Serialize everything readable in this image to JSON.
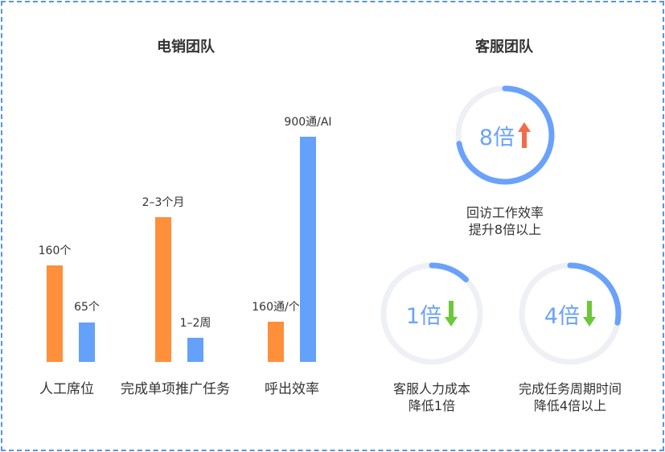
{
  "left_panel": {
    "title": "电销团队"
  },
  "right_panel": {
    "title": "客服团队"
  },
  "chart_data": [
    {
      "type": "bar",
      "title": "电销团队",
      "categories": [
        "人工席位",
        "完成单项推广任务",
        "呼出效率"
      ],
      "series": [
        {
          "color": "#ff8f3b",
          "values": [
            160,
            2.5,
            160
          ],
          "labels": [
            "160个",
            "2–3个月",
            "160通/个"
          ]
        },
        {
          "color": "#64a1fb",
          "values": [
            65,
            1.5,
            900
          ],
          "labels": [
            "65个",
            "1–2周",
            "900通/AI"
          ]
        }
      ]
    },
    {
      "type": "pie",
      "title": "客服团队",
      "rings": [
        {
          "value_text": "8倍",
          "direction": "up",
          "arrow_color": "#f26b4a",
          "fraction": 0.72,
          "caption_lines": [
            "回访工作效率",
            "提升8倍以上"
          ]
        },
        {
          "value_text": "1倍",
          "direction": "down",
          "arrow_color": "#6cc83a",
          "fraction": 0.125,
          "caption_lines": [
            "客服人力成本",
            "降低1倍"
          ]
        },
        {
          "value_text": "4倍",
          "direction": "down",
          "arrow_color": "#6cc83a",
          "fraction": 0.28,
          "caption_lines": [
            "完成任务周期时间",
            "降低4倍以上"
          ]
        }
      ]
    }
  ]
}
